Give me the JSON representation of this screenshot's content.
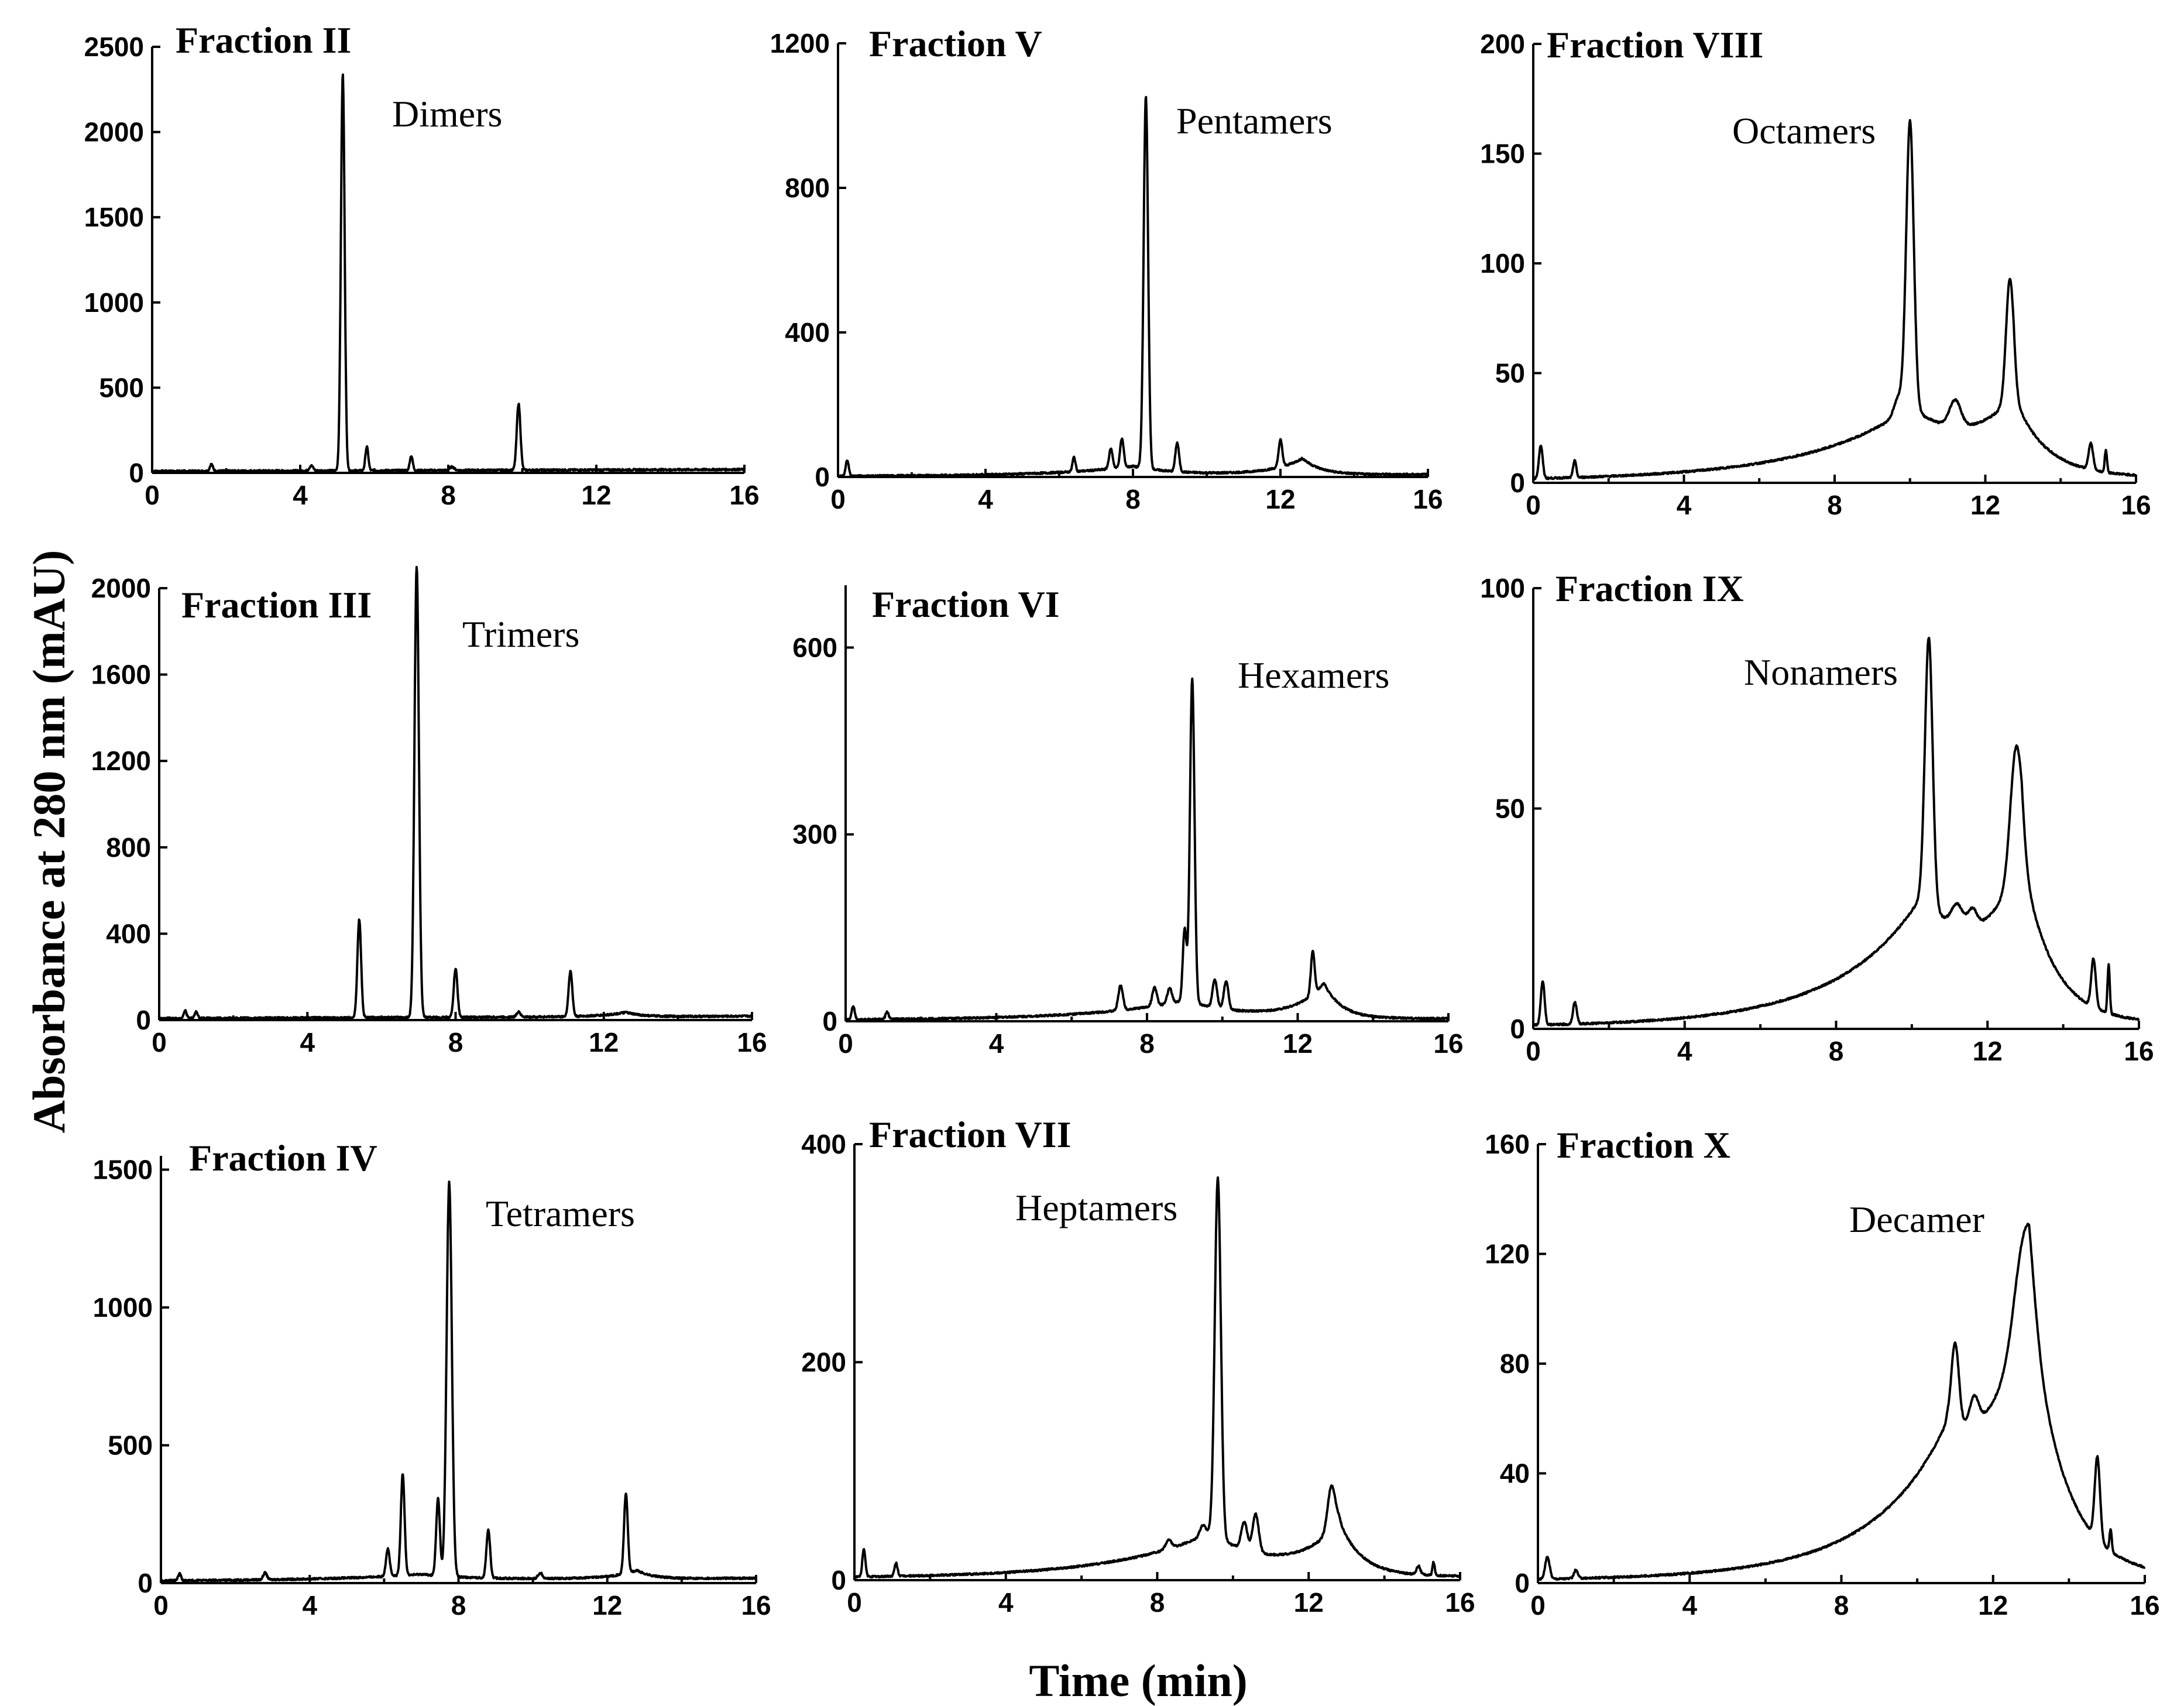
{
  "figure": {
    "ylabel": "Absorbance at 280 nm (mAU)",
    "xlabel": "Time (min)"
  },
  "chart_data": [
    {
      "type": "line",
      "title": "Fraction II",
      "annotation": "Dimers",
      "xlim": [
        0,
        16
      ],
      "ylim": [
        0,
        2500
      ],
      "xticks": [
        0,
        4,
        8,
        12,
        16
      ],
      "yticks": [
        0,
        500,
        1000,
        1500,
        2000,
        2500
      ],
      "baseline": 10,
      "drift": 10,
      "peaks": [
        [
          1.6,
          40,
          0.04
        ],
        [
          4.3,
          30,
          0.05
        ],
        [
          5.15,
          2330,
          0.05
        ],
        [
          5.8,
          140,
          0.04
        ],
        [
          7.0,
          85,
          0.04
        ],
        [
          8.1,
          20,
          0.06
        ],
        [
          9.9,
          390,
          0.05
        ]
      ],
      "humps": []
    },
    {
      "type": "line",
      "title": "Fraction V",
      "annotation": "Pentamers",
      "xlim": [
        0,
        16
      ],
      "ylim": [
        0,
        1200
      ],
      "xticks": [
        0,
        4,
        8,
        12,
        16
      ],
      "yticks": [
        0,
        400,
        800,
        1200
      ],
      "baseline": 2,
      "drift": 5,
      "peaks": [
        [
          0.25,
          45,
          0.04
        ],
        [
          6.4,
          40,
          0.04
        ],
        [
          7.4,
          55,
          0.05
        ],
        [
          7.7,
          80,
          0.05
        ],
        [
          8.35,
          1030,
          0.06
        ],
        [
          9.2,
          80,
          0.05
        ],
        [
          12.0,
          75,
          0.05
        ]
      ],
      "humps": [
        [
          8.0,
          25,
          1.2
        ],
        [
          12.6,
          45,
          0.5
        ]
      ]
    },
    {
      "type": "line",
      "title": "Fraction VIII",
      "annotation": "Octamers",
      "xlim": [
        0,
        16
      ],
      "ylim": [
        0,
        200
      ],
      "xticks": [
        0,
        4,
        8,
        12,
        16
      ],
      "yticks": [
        0,
        50,
        100,
        150,
        200
      ],
      "baseline": 1,
      "drift": 1,
      "peaks": [
        [
          0.2,
          15,
          0.05
        ],
        [
          1.1,
          8,
          0.04
        ],
        [
          9.7,
          8,
          0.12
        ],
        [
          10.0,
          130,
          0.1
        ],
        [
          11.2,
          12,
          0.15
        ],
        [
          12.65,
          55,
          0.1
        ],
        [
          14.8,
          12,
          0.06
        ],
        [
          15.2,
          10,
          0.03
        ]
      ],
      "humps": [
        [
          10.0,
          30,
          1.8
        ],
        [
          12.75,
          32,
          0.75
        ]
      ]
    },
    {
      "type": "line",
      "title": "Fraction III",
      "annotation": "Trimers",
      "xlim": [
        0,
        16
      ],
      "ylim": [
        0,
        2000
      ],
      "xticks": [
        0,
        4,
        8,
        12,
        16
      ],
      "yticks": [
        0,
        400,
        800,
        1200,
        1600,
        2000
      ],
      "baseline": 8,
      "drift": 10,
      "peaks": [
        [
          0.7,
          35,
          0.04
        ],
        [
          1.0,
          30,
          0.04
        ],
        [
          5.4,
          455,
          0.05
        ],
        [
          6.95,
          2090,
          0.06
        ],
        [
          8.0,
          225,
          0.05
        ],
        [
          9.7,
          25,
          0.05
        ],
        [
          11.1,
          210,
          0.05
        ]
      ],
      "humps": [
        [
          12.6,
          20,
          0.4
        ]
      ]
    },
    {
      "type": "line",
      "title": "Fraction VI",
      "annotation": "Hexamers",
      "xlim": [
        0,
        16
      ],
      "ylim": [
        0,
        700
      ],
      "xticks": [
        0,
        4,
        8,
        12,
        16
      ],
      "yticks": [
        0,
        300,
        600
      ],
      "baseline": 2,
      "drift": 2,
      "peaks": [
        [
          0.2,
          22,
          0.04
        ],
        [
          1.1,
          12,
          0.04
        ],
        [
          7.3,
          40,
          0.06
        ],
        [
          8.2,
          30,
          0.06
        ],
        [
          8.6,
          25,
          0.06
        ],
        [
          9.0,
          115,
          0.05
        ],
        [
          9.2,
          520,
          0.06
        ],
        [
          9.8,
          45,
          0.06
        ],
        [
          10.1,
          45,
          0.06
        ],
        [
          12.4,
          70,
          0.05
        ]
      ],
      "humps": [
        [
          9.0,
          30,
          1.5
        ],
        [
          12.7,
          55,
          0.45
        ]
      ]
    },
    {
      "type": "line",
      "title": "Fraction IX",
      "annotation": "Nonamers",
      "xlim": [
        0,
        16
      ],
      "ylim": [
        0,
        100
      ],
      "xticks": [
        0,
        4,
        8,
        12,
        16
      ],
      "yticks": [
        0,
        50,
        100
      ],
      "baseline": 0.5,
      "drift": 0.5,
      "peaks": [
        [
          0.25,
          10,
          0.05
        ],
        [
          1.1,
          5,
          0.05
        ],
        [
          10.45,
          60,
          0.1
        ],
        [
          11.2,
          5,
          0.15
        ],
        [
          11.6,
          4,
          0.12
        ],
        [
          12.75,
          28,
          0.15
        ],
        [
          14.8,
          11,
          0.06
        ],
        [
          15.2,
          11,
          0.03
        ]
      ],
      "humps": [
        [
          10.3,
          26,
          1.5
        ],
        [
          12.9,
          34,
          0.75
        ]
      ]
    },
    {
      "type": "line",
      "title": "Fraction IV",
      "annotation": "Tetramers",
      "xlim": [
        0,
        16
      ],
      "ylim": [
        0,
        1550
      ],
      "xticks": [
        0,
        4,
        8,
        12,
        16
      ],
      "yticks": [
        0,
        500,
        1000,
        1500
      ],
      "baseline": 8,
      "drift": 10,
      "peaks": [
        [
          0.5,
          25,
          0.04
        ],
        [
          2.8,
          25,
          0.05
        ],
        [
          6.1,
          100,
          0.05
        ],
        [
          6.5,
          370,
          0.05
        ],
        [
          7.45,
          280,
          0.05
        ],
        [
          7.75,
          1430,
          0.07
        ],
        [
          8.8,
          175,
          0.05
        ],
        [
          10.2,
          20,
          0.06
        ],
        [
          12.5,
          290,
          0.05
        ]
      ],
      "humps": [
        [
          7.0,
          20,
          1.3
        ],
        [
          12.8,
          30,
          0.4
        ]
      ]
    },
    {
      "type": "line",
      "title": "Fraction VII",
      "annotation": "Heptamers",
      "xlim": [
        0,
        16
      ],
      "ylim": [
        0,
        400
      ],
      "xticks": [
        0,
        4,
        8,
        12,
        16
      ],
      "yticks": [
        0,
        200,
        400
      ],
      "baseline": 2,
      "drift": 1,
      "peaks": [
        [
          0.25,
          25,
          0.04
        ],
        [
          1.1,
          12,
          0.04
        ],
        [
          8.3,
          8,
          0.08
        ],
        [
          9.2,
          10,
          0.08
        ],
        [
          9.6,
          330,
          0.08
        ],
        [
          10.3,
          25,
          0.08
        ],
        [
          10.6,
          35,
          0.08
        ],
        [
          12.6,
          40,
          0.1
        ],
        [
          14.9,
          8,
          0.05
        ],
        [
          15.3,
          12,
          0.03
        ]
      ],
      "humps": [
        [
          9.4,
          40,
          1.6
        ],
        [
          12.8,
          48,
          0.55
        ]
      ]
    },
    {
      "type": "line",
      "title": "Fraction X",
      "annotation": "Decamer",
      "xlim": [
        0,
        16
      ],
      "ylim": [
        0,
        160
      ],
      "xticks": [
        0,
        4,
        8,
        12,
        16
      ],
      "yticks": [
        0,
        40,
        80,
        120,
        160
      ],
      "baseline": 1,
      "drift": 1,
      "peaks": [
        [
          0.25,
          8,
          0.06
        ],
        [
          1.0,
          3,
          0.05
        ],
        [
          11.0,
          30,
          0.1
        ],
        [
          11.5,
          10,
          0.12
        ],
        [
          12.8,
          30,
          0.25
        ],
        [
          14.75,
          30,
          0.07
        ],
        [
          15.1,
          8,
          0.03
        ]
      ],
      "humps": [
        [
          10.8,
          38,
          1.5
        ],
        [
          12.95,
          95,
          0.85
        ]
      ]
    }
  ]
}
